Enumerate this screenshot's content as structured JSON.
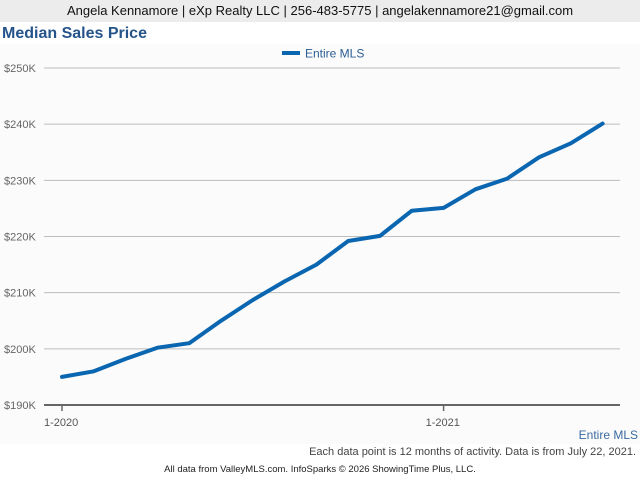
{
  "header": {
    "contact": "Angela Kennamore | eXp Realty LLC | 256-483-5775 | angelakennamore21@gmail.com"
  },
  "title": "Median Sales Price",
  "legend": {
    "label": "Entire MLS",
    "color": "#0a66b0"
  },
  "series_label": "Entire MLS",
  "note": "Each data point is 12 months of activity. Data is from July 22, 2021.",
  "footer": "All data from ValleyMLS.com. InfoSparks © 2026 ShowingTime Plus, LLC.",
  "chart_data": {
    "type": "line",
    "title": "Median Sales Price",
    "xlabel": "",
    "ylabel": "",
    "ylim": [
      190000,
      250000
    ],
    "y_ticks": [
      "$190K",
      "$200K",
      "$210K",
      "$220K",
      "$230K",
      "$240K",
      "$250K"
    ],
    "x_ticks": [
      "1-2020",
      "1-2021"
    ],
    "grid": true,
    "legend_position": "top",
    "x": [
      "1-2020",
      "2-2020",
      "3-2020",
      "4-2020",
      "5-2020",
      "6-2020",
      "7-2020",
      "8-2020",
      "9-2020",
      "10-2020",
      "11-2020",
      "12-2020",
      "1-2021",
      "2-2021",
      "3-2021",
      "4-2021",
      "5-2021",
      "6-2021"
    ],
    "series": [
      {
        "name": "Entire MLS",
        "color": "#0a66b0",
        "values": [
          195000,
          196000,
          198200,
          200200,
          201000,
          205000,
          208700,
          212000,
          215000,
          219200,
          220100,
          224600,
          225100,
          228400,
          230300,
          234100,
          236600,
          240100
        ]
      }
    ]
  }
}
